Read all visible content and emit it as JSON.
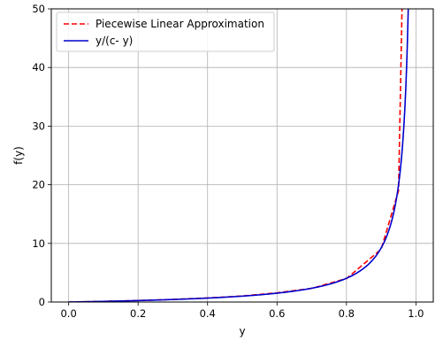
{
  "chart_data": {
    "type": "line",
    "title": "",
    "xlabel": "y",
    "ylabel": "f(y)",
    "xlim": [
      -0.05,
      1.05
    ],
    "ylim": [
      0,
      50
    ],
    "x_ticks": [
      0.0,
      0.2,
      0.4,
      0.6,
      0.8,
      1.0
    ],
    "x_tick_labels": [
      "0.0",
      "0.2",
      "0.4",
      "0.6",
      "0.8",
      "1.0"
    ],
    "y_ticks": [
      0,
      10,
      20,
      30,
      40,
      50
    ],
    "y_tick_labels": [
      "0",
      "10",
      "20",
      "30",
      "40",
      "50"
    ],
    "grid": true,
    "legend_position": "top-left",
    "series": [
      {
        "name": "Piecewise Linear Approximation",
        "color": "#ff0000",
        "style": "dashed",
        "x": [
          0.0,
          0.1,
          0.2,
          0.3,
          0.4,
          0.5,
          0.6,
          0.7,
          0.8,
          0.9,
          0.95,
          0.96
        ],
        "y": [
          0.0,
          0.114,
          0.258,
          0.444,
          0.69,
          1.03,
          1.57,
          2.33,
          4.0,
          9.0,
          19.0,
          50.0
        ]
      },
      {
        "name": "y/(c- y)",
        "color": "#0000cc",
        "style": "solid",
        "c": 0.9975,
        "x_range": [
          0.0,
          0.983
        ]
      }
    ]
  }
}
